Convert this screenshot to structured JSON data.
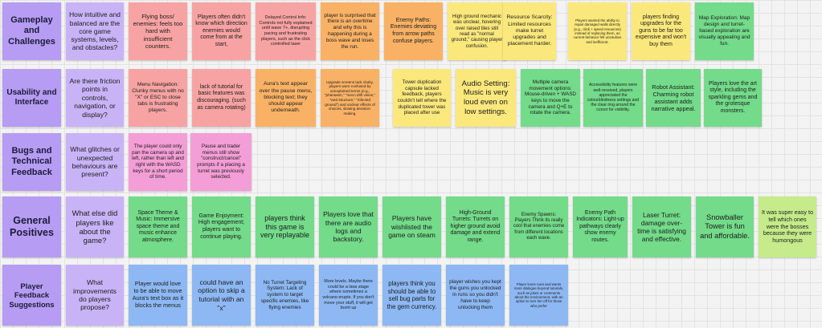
{
  "board": {
    "rows": [
      {
        "header": "Gameplay and Challenges",
        "question": "How intuitive and balanced are the core game systems, levels, and obstacles?",
        "notes": [
          "Flying boss/ enemies: feels too hard with insufficient counters.",
          "Players often didn't know which direction enemies would come from at the start,",
          "Delayed Control Info: Controls not fully explained until wave 7+, disrupting pacing and frustrating players, such as the click controlled laser",
          "player is surprised that there is an overtime and why this is happening during a boss wave and loses the run.",
          "Enemy Paths: Enemies deviating from arrow paths confuse players.",
          "High ground mechanic was unclear, hovering over raised tiles still read as \"normal ground,\" causing player confusion.",
          "Resource Scarcity: Limited resources make turret upgrades and placement harder.",
          "Players wanted the ability to repair damaged walls directly (e.g., click + spend resources) instead of replacing them, as current behavior felt unintuitive and inefficient.",
          "players finding upgrades for the guns to be far too expensive and won't buy them",
          "Map Exploration: Map design and turret-based exploration are visually appealing and fun."
        ]
      },
      {
        "header": "Usability and Interface",
        "question": "Are there friction points in controls, navigation, or display?",
        "notes": [
          "Menu Navigation: Clunky menus with no \"X\" or ESC to close tabs is frustrating players.",
          "lack of tutorial for basic features was discouraging. (such as camera rotating)",
          "Aura's text appear over the pause menu, blocking text; they should appear underneath.",
          "Upgrade screens lack clarity, players were confused by unexplained terms (e.g., \"phantasm,\" \"mecn drill vision,\" \"void structure,\" \"infected ground\") and unclear effects of choices, slowing decision-making.",
          "Tower duplication capsule lacked feedback, players couldn't tell where the duplicated tower was placed after use",
          "Audio Setting: Music is very loud even on low settings.",
          "Multiple camera movement options: Mouse-driven + WASD keys to move the camera and Q+E to rotate the camera.",
          "Accessibility features were well-received, players appreciated the colourblindness settings and the clear ring around the cursor for visibility.",
          "Robot Assistant: Charming robot assistant adds narrative appeal.",
          "Players love the art style, including the sparkling gems and the grotesque monsters."
        ]
      },
      {
        "header": "Bugs and Technical Feedback",
        "question": "What glitches or unexpected behaviours are present?",
        "notes": [
          "The player could only pan the camera up and left, rather than left and right with the WASD keys for a short period of time.",
          "Pause and trader menus still show \"construct/cancel\" prompts if a placing a turret was previously selected."
        ]
      },
      {
        "header": "General Positives",
        "question": "What else did players like about the game?",
        "notes": [
          "Space Theme & Music: Immersive space theme and music enhance atmosphere.",
          "Game Enjoyment: High engagement; players want to continue playing.",
          "players think this game is very replayable",
          "Players love that there are audio logs and backstory.",
          "Players have wishlisted the game on steam",
          "High-Ground Turrets: Turrets on higher ground avoid damage and extend range.",
          "Enemy Spawns: Players Think its really cool that enemies come from different locations each wave.",
          "Enemy Path Indicators: Light-up pathways clearly show enemy routes.",
          "Laser Turret: damage over-time is satisfying and effective.",
          "Snowballer Tower is fun and affordable.",
          "It was super easy to tell which ones were the bosses because they were humongous"
        ]
      },
      {
        "header": "Player Feedback Suggestions",
        "question": "What improvements do players propose?",
        "notes": [
          "Player would love to be able to move Aura's text box as it blocks the menus",
          "could have an option to skip a tutorial with an \"x\"",
          "No Turret Targeting System: Lack of system to target specific enemies, like flying enemies",
          "More levels. Maybe there could be a lava stage where sometimes a volcano erupts. If you don't move your stuff, it will get burnt up",
          "players think you should be able to sell bug parts for the gem currency.",
          "player wishes you kept the guns you unlocked in runs so you didn't have to keep unlocking them",
          "Player loves Aura and wants more dialogue beyond tutorials, such as jokes or comments about the environment, with an option to turn her off for those who prefer"
        ]
      }
    ]
  }
}
